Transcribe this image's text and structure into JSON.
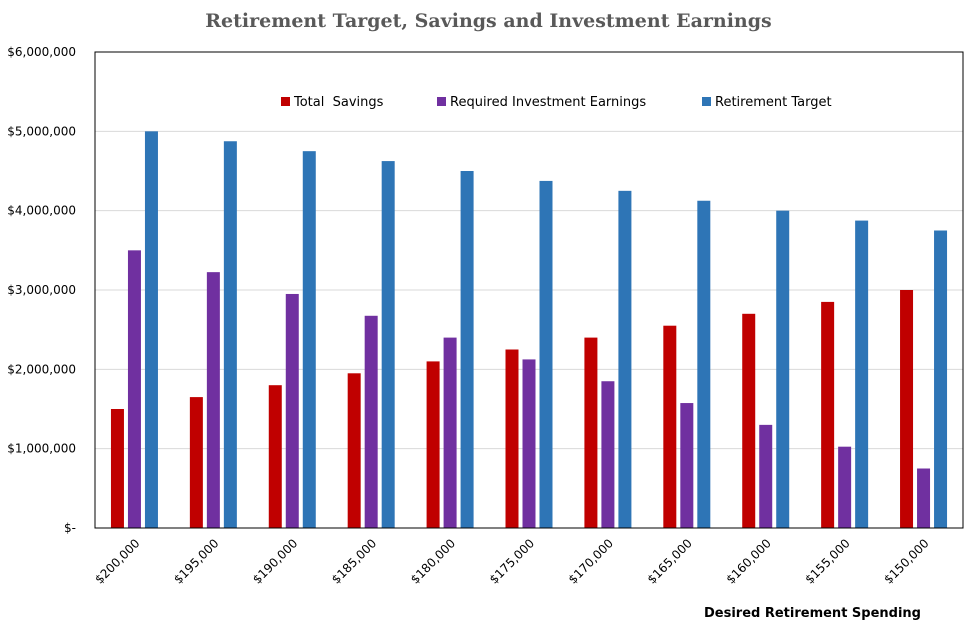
{
  "chart_data": {
    "type": "bar",
    "title": "Retirement Target, Savings and Investment Earnings",
    "xlabel": "Desired Retirement Spending",
    "ylabel": "",
    "ylim": [
      0,
      6000000
    ],
    "y_ticks": [
      0,
      1000000,
      2000000,
      3000000,
      4000000,
      5000000,
      6000000
    ],
    "y_tick_labels": [
      "$-",
      "$1,000,000",
      "$2,000,000",
      "$3,000,000",
      "$4,000,000",
      "$5,000,000",
      "$6,000,000"
    ],
    "grid": true,
    "legend_position": "top",
    "categories": [
      "$200,000",
      "$195,000",
      "$190,000",
      "$185,000",
      "$180,000",
      "$175,000",
      "$170,000",
      "$165,000",
      "$160,000",
      "$155,000",
      "$150,000"
    ],
    "series": [
      {
        "name": "Total  Savings",
        "color": "#C00000",
        "values": [
          1500000,
          1650000,
          1800000,
          1950000,
          2100000,
          2250000,
          2400000,
          2550000,
          2700000,
          2850000,
          3000000
        ]
      },
      {
        "name": "Required Investment Earnings",
        "color": "#7030A0",
        "values": [
          3500000,
          3225000,
          2950000,
          2675000,
          2400000,
          2125000,
          1850000,
          1575000,
          1300000,
          1025000,
          750000
        ]
      },
      {
        "name": "Retirement Target",
        "color": "#2E75B6",
        "values": [
          5000000,
          4875000,
          4750000,
          4625000,
          4500000,
          4375000,
          4250000,
          4125000,
          4000000,
          3875000,
          3750000
        ]
      }
    ]
  }
}
